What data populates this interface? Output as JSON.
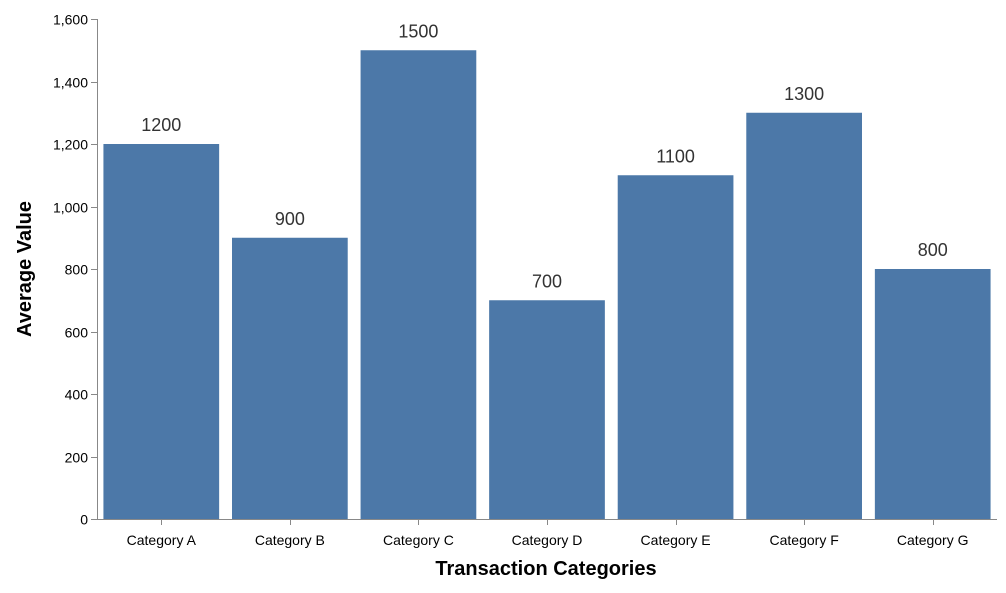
{
  "chart_data": {
    "type": "bar",
    "categories": [
      "Category A",
      "Category B",
      "Category C",
      "Category D",
      "Category E",
      "Category F",
      "Category G"
    ],
    "values": [
      1200,
      900,
      1500,
      700,
      1100,
      1300,
      800
    ],
    "value_labels": [
      "1200",
      "900",
      "1500",
      "700",
      "1100",
      "1300",
      "800"
    ],
    "title": "",
    "xlabel": "Transaction Categories",
    "ylabel": "Average Value",
    "ylim": [
      0,
      1600
    ],
    "yticks": [
      0,
      200,
      400,
      600,
      800,
      1000,
      1200,
      1400,
      1600
    ],
    "ytick_labels": [
      "0",
      "200",
      "400",
      "600",
      "800",
      "1,000",
      "1,200",
      "1,400",
      "1,600"
    ],
    "grid": false,
    "legend": "none",
    "colors": {
      "bar": "#4c78a8",
      "axis": "#888888",
      "text": "#000000",
      "label": "#333333"
    }
  }
}
